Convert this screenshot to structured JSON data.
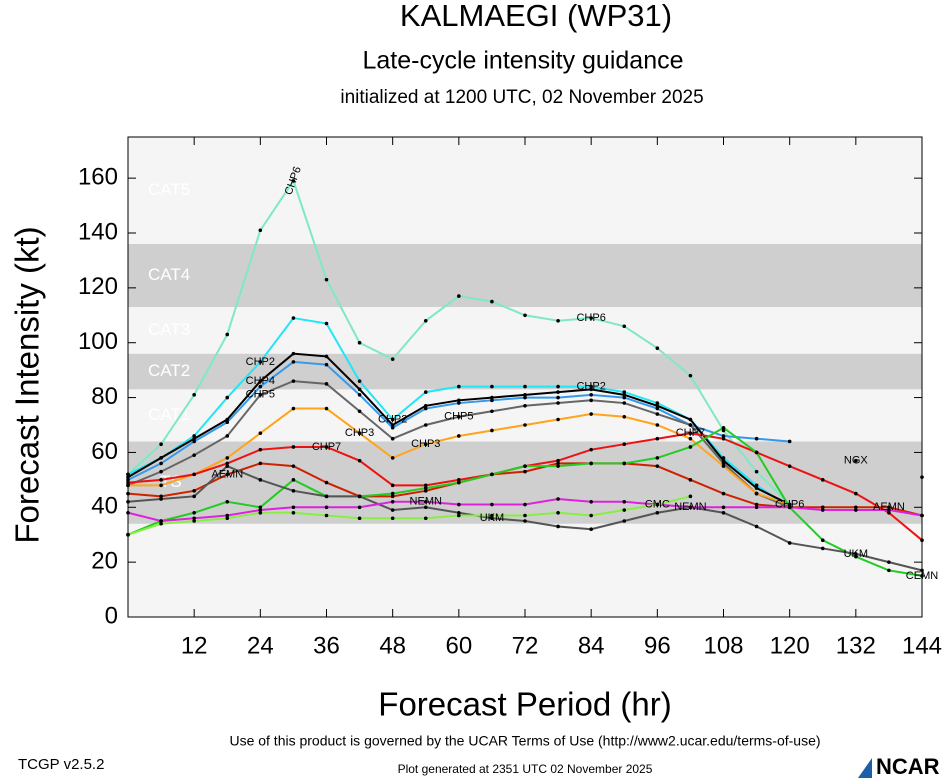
{
  "chart_data": {
    "type": "line",
    "title": "KALMAEGI (WP31)",
    "subtitle": "Late-cycle intensity guidance",
    "initialized": "initialized at 1200 UTC, 02 November 2025",
    "x_label": "Forecast Period (hr)",
    "y_label": "Forecast Intensity (kt)",
    "x": [
      0,
      6,
      12,
      18,
      24,
      30,
      36,
      42,
      48,
      54,
      60,
      66,
      72,
      78,
      84,
      90,
      96,
      102,
      108,
      114,
      120,
      126,
      132,
      138,
      144
    ],
    "xlim": [
      0,
      144
    ],
    "xticks": [
      12,
      24,
      36,
      48,
      60,
      72,
      84,
      96,
      108,
      120,
      132,
      144
    ],
    "ylim": [
      0,
      175
    ],
    "yticks": [
      0,
      20,
      40,
      60,
      80,
      100,
      120,
      140,
      160
    ],
    "bands": [
      {
        "label": "TS",
        "from": 34,
        "to": 64,
        "color": "#cfcfcf"
      },
      {
        "label": "CAT1",
        "from": 64,
        "to": 83,
        "color": "#f5f5f5"
      },
      {
        "label": "CAT2",
        "from": 83,
        "to": 96,
        "color": "#cfcfcf"
      },
      {
        "label": "CAT3",
        "from": 96,
        "to": 113,
        "color": "#f5f5f5"
      },
      {
        "label": "CAT4",
        "from": 113,
        "to": 136,
        "color": "#cfcfcf"
      },
      {
        "label": "CAT5",
        "from": 136,
        "to": 175,
        "color": "#f5f5f5"
      }
    ],
    "series": [
      {
        "name": "CHP6",
        "color": "#7fe8c4",
        "values": [
          52,
          63,
          81,
          103,
          141,
          159,
          123,
          100,
          94,
          108,
          117,
          115,
          110,
          108,
          109,
          106,
          98,
          88,
          68,
          53,
          41,
          null,
          null,
          null,
          null
        ]
      },
      {
        "name": "CHP2",
        "color": "#22e5f5",
        "values": [
          52,
          58,
          66,
          80,
          93,
          109,
          107,
          86,
          72,
          82,
          84,
          84,
          84,
          84,
          84,
          82,
          78,
          72,
          58,
          48,
          40,
          null,
          null,
          null,
          null
        ]
      },
      {
        "name": "NGX",
        "color": "#3399ee",
        "values": [
          50,
          56,
          64,
          71,
          84,
          93,
          92,
          81,
          69,
          76,
          78,
          79,
          80,
          80,
          81,
          80,
          76,
          70,
          66,
          65,
          64,
          null,
          57,
          null,
          51
        ]
      },
      {
        "name": "CHP4",
        "color": "#000000",
        "values": [
          51,
          58,
          65,
          72,
          86,
          96,
          95,
          83,
          70,
          77,
          79,
          80,
          81,
          82,
          83,
          81,
          77,
          72,
          57,
          47,
          41,
          null,
          null,
          null,
          null
        ]
      },
      {
        "name": "CHP5",
        "color": "#666666",
        "values": [
          48,
          53,
          59,
          66,
          81,
          86,
          85,
          75,
          65,
          70,
          73,
          75,
          77,
          78,
          79,
          78,
          74,
          70,
          56,
          45,
          40,
          null,
          null,
          null,
          null
        ]
      },
      {
        "name": "CHP3",
        "color": "#ffa41c",
        "values": [
          48,
          48,
          52,
          58,
          67,
          76,
          76,
          67,
          58,
          63,
          66,
          68,
          70,
          72,
          74,
          73,
          70,
          65,
          55,
          45,
          41,
          null,
          null,
          null,
          null
        ]
      },
      {
        "name": "CHP7",
        "color": "#ee1111",
        "values": [
          49,
          50,
          52,
          56,
          61,
          62,
          62,
          57,
          48,
          48,
          50,
          52,
          55,
          57,
          61,
          63,
          65,
          67,
          65,
          60,
          55,
          50,
          45,
          38,
          28
        ]
      },
      {
        "name": "AEMN",
        "color": "#cc2200",
        "values": [
          45,
          44,
          46,
          52,
          56,
          55,
          49,
          44,
          44,
          46,
          49,
          52,
          53,
          56,
          56,
          56,
          55,
          50,
          45,
          41,
          40,
          40,
          40,
          40,
          37
        ]
      },
      {
        "name": "CEMN",
        "color": "#22cc22",
        "values": [
          30,
          35,
          38,
          42,
          40,
          50,
          44,
          44,
          45,
          47,
          49,
          52,
          55,
          55,
          56,
          56,
          58,
          62,
          69,
          60,
          40,
          28,
          22,
          17,
          15
        ]
      },
      {
        "name": "UKM",
        "color": "#555555",
        "values": [
          42,
          43,
          44,
          55,
          50,
          46,
          44,
          44,
          39,
          40,
          38,
          36,
          35,
          33,
          32,
          35,
          38,
          40,
          38,
          33,
          27,
          25,
          23,
          20,
          17
        ]
      },
      {
        "name": "NEMN",
        "color": "#dd22dd",
        "values": [
          38,
          35,
          36,
          37,
          39,
          40,
          40,
          40,
          42,
          42,
          41,
          41,
          41,
          43,
          42,
          42,
          41,
          40,
          40,
          40,
          40,
          39,
          39,
          39,
          37
        ]
      },
      {
        "name": "CMC",
        "color": "#88ee44",
        "values": [
          30,
          34,
          35,
          36,
          38,
          38,
          37,
          36,
          36,
          36,
          37,
          37,
          37,
          38,
          37,
          39,
          41,
          44,
          null,
          null,
          null,
          null,
          null,
          null,
          null
        ]
      }
    ],
    "footer": "Use of this product is governed by the UCAR Terms of Use (http://www2.ucar.edu/terms-of-use)",
    "version": "TCGP v2.5.2",
    "generated": "Plot generated at 2351 UTC   02 November 2025",
    "logo": "NCAR"
  }
}
